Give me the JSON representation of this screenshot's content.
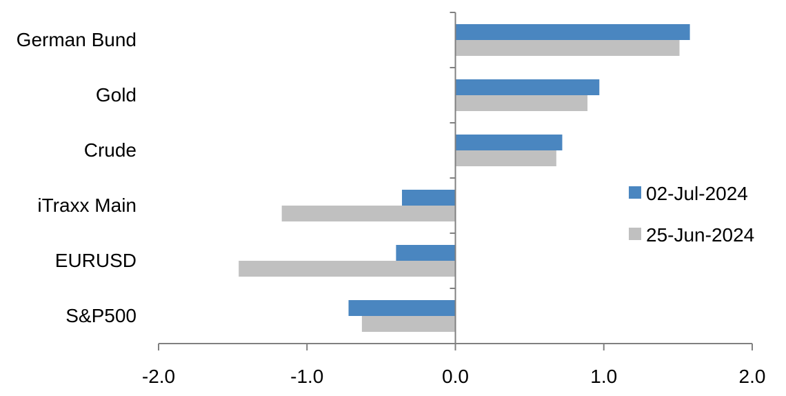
{
  "chart_data": {
    "type": "bar",
    "orientation": "horizontal",
    "title": "",
    "xlabel": "",
    "ylabel": "",
    "categories": [
      "German Bund",
      "Gold",
      "Crude",
      "iTraxx Main",
      "EURUSD",
      "S&P500"
    ],
    "series": [
      {
        "name": "02-Jul-2024",
        "color": "#4a86c0",
        "values": [
          1.58,
          0.97,
          0.72,
          -0.36,
          -0.4,
          -0.72
        ]
      },
      {
        "name": "25-Jun-2024",
        "color": "#c0c0c0",
        "values": [
          1.51,
          0.89,
          0.68,
          -1.17,
          -1.46,
          -0.63
        ]
      }
    ],
    "xlim": [
      -2.0,
      2.0
    ],
    "xticks": [
      "-2.0",
      "-1.0",
      "0.0",
      "1.0",
      "2.0"
    ],
    "grid": false,
    "legend_position": "right"
  }
}
